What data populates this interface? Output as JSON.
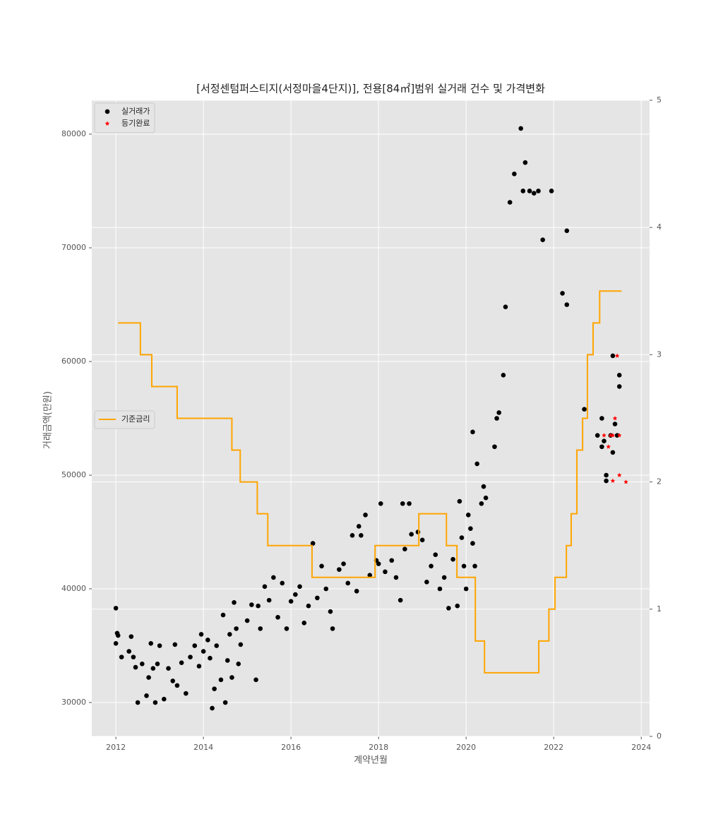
{
  "chart_data": {
    "type": "scatter",
    "title": "[서정센텀퍼스티지(서정마을4단지)], 전용[84㎡]범위 실거래 건수 및 가격변화",
    "xlabel": "계약년월",
    "ylabel": "거래금액(만원)",
    "xlim": [
      2011.45,
      2024.19
    ],
    "xticks": [
      2012,
      2014,
      2016,
      2018,
      2020,
      2022,
      2024
    ],
    "ylim": [
      27020,
      82980
    ],
    "yticks": [
      30000,
      40000,
      50000,
      60000,
      70000,
      80000
    ],
    "y2lim": [
      0,
      5
    ],
    "y2ticks": [
      0,
      1,
      2,
      3,
      4,
      5
    ],
    "grid": true,
    "legend": "upper left",
    "legend2": "center left",
    "series": [
      {
        "name": "실거래가",
        "color": "#000000",
        "marker": "circle",
        "x": [
          2012.0,
          2012.0,
          2012.03,
          2012.05,
          2012.13,
          2012.3,
          2012.35,
          2012.4,
          2012.45,
          2012.5,
          2012.6,
          2012.7,
          2012.75,
          2012.8,
          2012.85,
          2012.9,
          2012.95,
          2013.0,
          2013.1,
          2013.2,
          2013.3,
          2013.35,
          2013.4,
          2013.5,
          2013.6,
          2013.7,
          2013.8,
          2013.9,
          2013.95,
          2014.0,
          2014.1,
          2014.15,
          2014.2,
          2014.25,
          2014.3,
          2014.4,
          2014.45,
          2014.5,
          2014.55,
          2014.6,
          2014.65,
          2014.7,
          2014.75,
          2014.8,
          2014.85,
          2015.0,
          2015.1,
          2015.2,
          2015.25,
          2015.3,
          2015.4,
          2015.5,
          2015.6,
          2015.7,
          2015.8,
          2015.9,
          2016.0,
          2016.1,
          2016.2,
          2016.3,
          2016.4,
          2016.5,
          2016.6,
          2016.7,
          2016.8,
          2016.9,
          2016.95,
          2017.1,
          2017.2,
          2017.3,
          2017.4,
          2017.5,
          2017.55,
          2017.6,
          2017.7,
          2017.8,
          2017.95,
          2018.0,
          2018.05,
          2018.15,
          2018.3,
          2018.4,
          2018.5,
          2018.55,
          2018.6,
          2018.7,
          2018.75,
          2018.9,
          2019.0,
          2019.1,
          2019.2,
          2019.3,
          2019.4,
          2019.5,
          2019.6,
          2019.7,
          2019.8,
          2019.85,
          2019.9,
          2019.95,
          2020.0,
          2020.05,
          2020.1,
          2020.15,
          2020.2,
          2020.25,
          2020.35,
          2020.4,
          2020.45,
          2020.15,
          2020.65,
          2020.7,
          2020.75,
          2020.85,
          2020.9,
          2021.0,
          2021.1,
          2021.25,
          2021.3,
          2021.35,
          2021.45,
          2021.55,
          2021.65,
          2021.75,
          2021.95,
          2022.2,
          2022.3,
          2022.3,
          2022.7,
          2023.0,
          2023.1,
          2023.1,
          2023.15,
          2023.2,
          2023.2,
          2023.3,
          2023.35,
          2023.35,
          2023.4,
          2023.45,
          2023.5,
          2023.5
        ],
        "values": [
          38300,
          35200,
          36100,
          35900,
          34000,
          34500,
          35800,
          34000,
          33100,
          30000,
          33400,
          30600,
          32200,
          35200,
          33000,
          30000,
          33400,
          35000,
          30300,
          33000,
          31900,
          35100,
          31500,
          33500,
          30800,
          34000,
          35000,
          33200,
          36000,
          34500,
          35500,
          33900,
          29500,
          31200,
          35000,
          32000,
          37700,
          30000,
          33700,
          36000,
          32200,
          38800,
          36500,
          33400,
          35100,
          37200,
          38600,
          32000,
          38500,
          36500,
          40200,
          39000,
          41000,
          37500,
          40500,
          36500,
          38900,
          39500,
          40200,
          37000,
          38500,
          44000,
          39200,
          42000,
          40000,
          38000,
          36500,
          41700,
          42200,
          40500,
          44700,
          39800,
          45500,
          44700,
          46500,
          41200,
          42500,
          42200,
          47500,
          41500,
          42500,
          41000,
          39000,
          47500,
          43500,
          47500,
          44800,
          45000,
          44300,
          40600,
          42000,
          43000,
          40000,
          41000,
          38300,
          42600,
          38500,
          47700,
          44500,
          42000,
          40000,
          46500,
          45300,
          44000,
          42000,
          51000,
          47500,
          49000,
          48000,
          53800,
          52500,
          55000,
          55500,
          58800,
          64800,
          74000,
          76500,
          80500,
          75000,
          77500,
          75000,
          74800,
          75000,
          70700,
          75000,
          66000,
          71500,
          65000,
          55800,
          53500,
          55000,
          52500,
          53000,
          50000,
          49500,
          53500,
          52000,
          60500,
          54500,
          53500,
          58800,
          57800
        ]
      },
      {
        "name": "등기완료",
        "color": "#ff0000",
        "marker": "star",
        "x": [
          2023.15,
          2023.25,
          2023.35,
          2023.35,
          2023.4,
          2023.45,
          2023.5,
          2023.5,
          2023.65,
          2023.3
        ],
        "values": [
          53500,
          52500,
          49500,
          53500,
          55000,
          60500,
          53500,
          50000,
          49400,
          53500
        ]
      },
      {
        "name": "기준금리",
        "color": "#ffa500",
        "type": "step",
        "axis": "y2",
        "x": [
          2012.05,
          2012.56,
          2012.82,
          2013.4,
          2014.65,
          2014.84,
          2015.23,
          2015.47,
          2016.48,
          2017.92,
          2018.92,
          2019.55,
          2019.79,
          2020.21,
          2020.42,
          2021.66,
          2021.89,
          2022.03,
          2022.29,
          2022.4,
          2022.53,
          2022.66,
          2022.77,
          2022.9,
          2023.05,
          2023.55
        ],
        "values": [
          3.25,
          3.0,
          2.75,
          2.5,
          2.25,
          2.0,
          1.75,
          1.5,
          1.25,
          1.5,
          1.75,
          1.5,
          1.25,
          0.75,
          0.5,
          0.75,
          1.0,
          1.25,
          1.5,
          1.75,
          2.25,
          2.5,
          3.0,
          3.25,
          3.5,
          3.5
        ]
      }
    ]
  }
}
